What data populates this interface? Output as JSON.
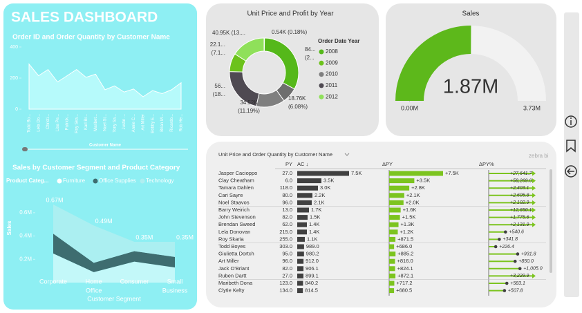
{
  "header": {
    "title": "SALES DASHBOARD"
  },
  "watermark": "zebra bi",
  "chart_data": [
    {
      "type": "area",
      "title": "Order ID and Order Quantity by Customer Name",
      "x_label": "Customer Name",
      "color": "#b6fafb",
      "categories": [
        "Todd Bo...",
        "Lela Do...",
        "Christi...",
        "Lisa Pe...",
        "Patrick...",
        "Roy Ska...",
        "Karl Br...",
        "Maribet...",
        "Noel St...",
        "Tony Sa...",
        "Justin ...",
        "Annie C...",
        "Art Miller",
        "Bobby E...",
        "Brian M...",
        "Ricardo...",
        "Rob He..."
      ],
      "values": [
        290,
        215,
        255,
        175,
        215,
        255,
        205,
        225,
        125,
        150,
        110,
        130,
        80,
        120,
        100,
        125,
        170
      ],
      "ylim": [
        0,
        400
      ],
      "yticks": [
        0,
        200,
        400
      ]
    },
    {
      "type": "stacked-area",
      "title": "Sales by Customer Segment and Product Category",
      "legend_title": "Product Categ...",
      "x_label": "Customer Segment",
      "y_label": "Sales",
      "categories": [
        [
          "Corporate"
        ],
        [
          "Home",
          "Office"
        ],
        [
          "Consumer"
        ],
        [
          "Small",
          "Business"
        ]
      ],
      "series": [
        {
          "name": "Furniture",
          "color": "#c3f8f9",
          "values": [
            250000,
            90000,
            180000,
            130000
          ]
        },
        {
          "name": "Office Supplies",
          "color": "#3e6d70",
          "values": [
            170000,
            80000,
            90000,
            90000
          ]
        },
        {
          "name": "Technology",
          "color": "#b0eef0",
          "values": [
            250000,
            320000,
            80000,
            130000
          ]
        }
      ],
      "total_labels": [
        "0.67M",
        "0.49M",
        "0.35M",
        "0.35M"
      ],
      "ylim": [
        0,
        700000
      ],
      "yticks": [
        {
          "value": 200000,
          "label": "0.2M"
        },
        {
          "value": 400000,
          "label": "0.4M"
        },
        {
          "value": 600000,
          "label": "0.6M"
        }
      ]
    },
    {
      "type": "donut",
      "title": "Unit Price and Profit by Year",
      "legend_title": "Order Date Year",
      "legend": [
        {
          "name": "2008",
          "color": "#55b81a"
        },
        {
          "name": "2009",
          "color": "#6cc21b"
        },
        {
          "name": "2010",
          "color": "#7f7f7f"
        },
        {
          "name": "2011",
          "color": "#4f4a52"
        },
        {
          "name": "2012",
          "color": "#8fe05a"
        }
      ],
      "values": [
        0.54,
        84,
        18.76,
        34.52,
        56,
        22.1,
        40.95
      ],
      "value_labels": [
        [
          "0.54K (0.18%)"
        ],
        [
          "84...",
          "(2..."
        ],
        [
          "18.76K",
          "(6.08%)"
        ],
        [
          "34.52K",
          "(11.19%)"
        ],
        [
          "56...",
          "(18..."
        ],
        [
          "22.1...",
          "(7.1..."
        ],
        [
          "40.95K (13...."
        ]
      ],
      "colors": [
        "#7f7f7f",
        "#55b81a",
        "#6e6e6e",
        "#7f7f7f",
        "#4f4a52",
        "#6cc21b",
        "#8fe05a"
      ]
    },
    {
      "type": "gauge",
      "title": "Sales",
      "value": 1870000,
      "value_label": "1.87M",
      "color": "#5db81b",
      "ylim": [
        0,
        3730000
      ],
      "yticks": [
        {
          "value": 0,
          "label": "0.00M"
        },
        {
          "value": 3730000,
          "label": "3.73M"
        }
      ]
    },
    {
      "type": "bar-table",
      "title": "Unit Price and Order Quantity by Customer Name",
      "categories": [
        "Jasper Cacioppo",
        "Clay Cheatham",
        "Tamara Dahlen",
        "Cari Sayre",
        "Noel Staavos",
        "Barry Weirich",
        "John Stevenson",
        "Brendan Sweed",
        "Lela Donovan",
        "Roy Skaria",
        "Todd Boyes",
        "Giulietta Dortch",
        "Art Miller",
        "Jack O'Briant",
        "Ruben Dartt",
        "Maribeth Dona",
        "Clytie Kelty"
      ],
      "series": [
        {
          "name": "PY",
          "values": [
            27,
            6,
            118,
            80,
            96,
            13,
            82,
            62,
            215,
            255,
            303,
            95,
            96,
            82,
            27,
            123,
            134
          ],
          "value_labels": [
            "27.0",
            "6.0",
            "118.0",
            "80.0",
            "96.0",
            "13.0",
            "82.0",
            "62.0",
            "215.0",
            "255.0",
            "303.0",
            "95.0",
            "96.0",
            "82.0",
            "27.0",
            "123.0",
            "134.0"
          ]
        },
        {
          "name": "AC ↓",
          "color": "#404040",
          "xlim": [
            0,
            7500
          ],
          "values": [
            7500,
            3500,
            3000,
            2200,
            2100,
            1700,
            1500,
            1400,
            1400,
            1100,
            989,
            980.2,
            912,
            906.1,
            899.1,
            840.2,
            814.5
          ],
          "value_labels": [
            "7.5K",
            "3.5K",
            "3.0K",
            "2.2K",
            "2.1K",
            "1.7K",
            "1.5K",
            "1.4K",
            "1.4K",
            "1.1K",
            "989.0",
            "980.2",
            "912.0",
            "906.1",
            "899.1",
            "840.2",
            "814.5"
          ]
        },
        {
          "name": "ΔPY",
          "color": "#7cc41f",
          "xlim": [
            0,
            7500
          ],
          "values": [
            7500,
            3500,
            2800,
            2100,
            2000,
            1600,
            1500,
            1300,
            1200,
            871.5,
            686,
            885.2,
            816,
            824.1,
            872.1,
            717.2,
            680.5
          ],
          "value_labels": [
            "+7.5K",
            "+3.5K",
            "+2.8K",
            "+2.1K",
            "+2.0K",
            "+1.6K",
            "+1.5K",
            "+1.3K",
            "+1.2K",
            "+871.5",
            "+686.0",
            "+885.2",
            "+816.0",
            "+824.1",
            "+872.1",
            "+717.2",
            "+680.5"
          ]
        },
        {
          "name": "ΔPY%",
          "color": "#7cc41f",
          "xlim": [
            0,
            1400
          ],
          "values": [
            27641.7,
            58269,
            2403.1,
            2605.8,
            2102.9,
            12650.1,
            1775.6,
            2131.9,
            540.6,
            341.8,
            226.4,
            931.8,
            850,
            1005,
            3229.9,
            583.1,
            507.8
          ],
          "value_labels": [
            "+27,641.7",
            "+58,269.0",
            "+2,403.1",
            "+2,605.8",
            "+2,102.9",
            "+12,650.1",
            "+1,775.6",
            "+2,131.9",
            "+540.6",
            "+341.8",
            "+226.4",
            "+931.8",
            "+850.0",
            "+1,005.0",
            "+3,229.9",
            "+583.1",
            "+507.8"
          ]
        }
      ]
    }
  ]
}
